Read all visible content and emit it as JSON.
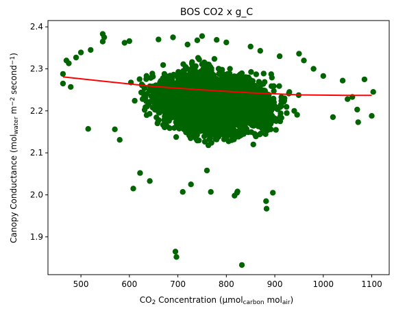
{
  "chart_data": {
    "type": "scatter",
    "title": "BOS CO2 x g_C",
    "xlabel": {
      "parts": [
        {
          "t": "CO"
        },
        {
          "t": "2",
          "s": "sub"
        },
        {
          "t": " Concentration (μmol"
        },
        {
          "t": "carbon",
          "s": "sub"
        },
        {
          "t": " mol"
        },
        {
          "t": "air",
          "s": "sub"
        },
        {
          "t": ")"
        }
      ]
    },
    "ylabel": {
      "parts": [
        {
          "t": "Canopy Conductance (mol"
        },
        {
          "t": "water",
          "s": "sub"
        },
        {
          "t": " m"
        },
        {
          "t": "−2",
          "s": "sup"
        },
        {
          "t": " second"
        },
        {
          "t": "−1",
          "s": "sup"
        },
        {
          "t": ")"
        }
      ]
    },
    "xlim": [
      432,
      1136
    ],
    "ylim": [
      1.81,
      2.415
    ],
    "xticks": [
      500,
      600,
      700,
      800,
      900,
      1000,
      1100
    ],
    "yticks": [
      1.9,
      2.0,
      2.1,
      2.2,
      2.3,
      2.4
    ],
    "xtick_labels": [
      "500",
      "600",
      "700",
      "800",
      "900",
      "1000",
      "1100"
    ],
    "ytick_labels": [
      "1.9",
      "2.0",
      "2.1",
      "2.2",
      "2.3",
      "2.4"
    ],
    "grid": false,
    "colors": {
      "points": "#006400",
      "fit": "#ff0000"
    },
    "fit_line": {
      "x": [
        463,
        550,
        650,
        750,
        850,
        950,
        1050,
        1100
      ],
      "y": [
        2.281,
        2.27,
        2.258,
        2.25,
        2.243,
        2.238,
        2.237,
        2.237
      ]
    },
    "points": {
      "x": [
        545,
        695,
        697,
        832,
        882,
        883,
        822,
        817,
        823,
        896,
        760,
        768,
        710,
        608,
        622,
        642,
        727,
        1103,
        1100,
        1072,
        479,
        463,
        463,
        515,
        580,
        570,
        1060,
        1040,
        1020,
        1000,
        980,
        1085,
        1070,
        1050,
        470,
        475,
        490,
        500,
        520,
        545,
        548,
        590,
        600,
        660,
        690,
        720,
        740,
        750,
        780,
        800,
        850,
        870,
        910,
        950,
        960
      ],
      "y": [
        2.383,
        1.865,
        1.852,
        1.833,
        1.985,
        1.967,
        2.005,
        1.998,
        2.008,
        2.005,
        2.058,
        2.007,
        2.007,
        2.015,
        2.052,
        2.033,
        2.025,
        2.245,
        2.188,
        2.173,
        2.257,
        2.265,
        2.288,
        2.157,
        2.131,
        2.156,
        2.233,
        2.272,
        2.185,
        2.283,
        2.3,
        2.275,
        2.203,
        2.228,
        2.32,
        2.313,
        2.327,
        2.339,
        2.345,
        2.365,
        2.375,
        2.362,
        2.366,
        2.37,
        2.375,
        2.358,
        2.368,
        2.378,
        2.369,
        2.363,
        2.353,
        2.343,
        2.33,
        2.336,
        2.32
      ]
    },
    "cloud": {
      "count": 4200,
      "envelope_x": [
        470,
        500,
        550,
        600,
        650,
        700,
        750,
        800,
        850,
        900,
        950,
        1000,
        1050,
        1080
      ],
      "envelope_ymin": [
        2.24,
        2.2,
        2.16,
        2.12,
        2.1,
        2.08,
        2.07,
        2.07,
        2.08,
        2.09,
        2.12,
        2.14,
        2.18,
        2.2
      ],
      "envelope_ymax": [
        2.32,
        2.33,
        2.35,
        2.36,
        2.37,
        2.37,
        2.37,
        2.36,
        2.35,
        2.34,
        2.33,
        2.31,
        2.28,
        2.26
      ]
    }
  }
}
